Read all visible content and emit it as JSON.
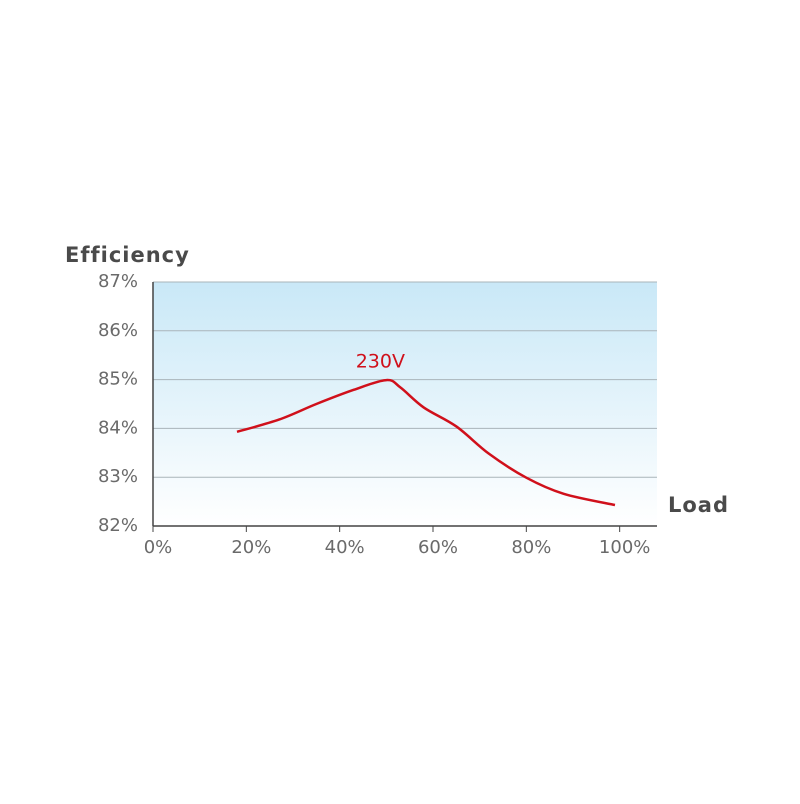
{
  "chart_data": {
    "type": "line",
    "y_label": "Efficiency",
    "x_label": "Load",
    "x": [
      18,
      27,
      35,
      43,
      50,
      53,
      58,
      65,
      72,
      80,
      88,
      99
    ],
    "series": [
      {
        "name": "230V",
        "color": "#d0101b",
        "values": [
          83.93,
          84.18,
          84.5,
          84.79,
          84.99,
          84.84,
          84.43,
          84.04,
          83.48,
          82.99,
          82.66,
          82.43
        ]
      }
    ],
    "xlim": [
      0,
      108
    ],
    "ylim": [
      82,
      87
    ],
    "xticks": [
      {
        "value": 0,
        "label": "0%"
      },
      {
        "value": 20,
        "label": "20%"
      },
      {
        "value": 40,
        "label": "40%"
      },
      {
        "value": 60,
        "label": "60%"
      },
      {
        "value": 80,
        "label": "80%"
      },
      {
        "value": 100,
        "label": "100%"
      }
    ],
    "yticks": [
      {
        "value": 82,
        "label": "82%"
      },
      {
        "value": 83,
        "label": "83%"
      },
      {
        "value": 84,
        "label": "84%"
      },
      {
        "value": 85,
        "label": "85%"
      },
      {
        "value": 86,
        "label": "86%"
      },
      {
        "value": 87,
        "label": "87%"
      }
    ],
    "grid": true
  }
}
